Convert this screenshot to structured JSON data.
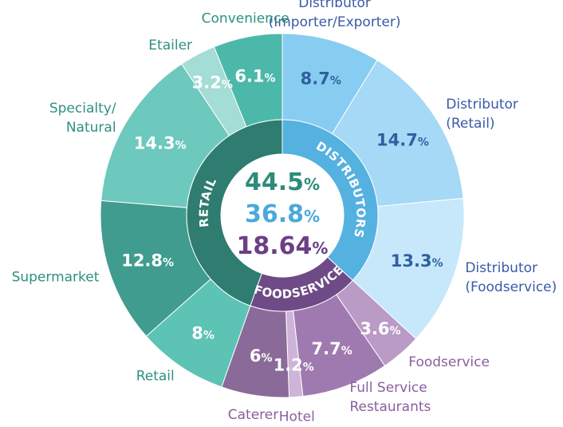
{
  "chart_data": {
    "type": "pie",
    "center_totals": [
      {
        "value": 44.5,
        "color": "#2e8b7a"
      },
      {
        "value": 36.8,
        "color": "#4aa9dc"
      },
      {
        "value": 18.64,
        "color": "#6b3f87"
      }
    ],
    "groups": [
      {
        "name": "DISTRIBUTORS",
        "value": 36.8,
        "color": "#55b1e0"
      },
      {
        "name": "FOODSERVICE",
        "value": 18.64,
        "color": "#6e4a86"
      },
      {
        "name": "RETAIL",
        "value": 44.5,
        "color": "#2f7c70"
      }
    ],
    "segments": [
      {
        "label": "Distributor (Importer/Exporter)",
        "label_lines": [
          "Distributor",
          "(Importer/Exporter)"
        ],
        "value": 8.7,
        "display": "8.7",
        "group": "DISTRIBUTORS",
        "color": "#87cdf1",
        "text_color": "#2f5f9f",
        "label_color": "#3a5aa8"
      },
      {
        "label": "Distributor (Retail)",
        "label_lines": [
          "Distributor",
          "(Retail)"
        ],
        "value": 14.7,
        "display": "14.7",
        "group": "DISTRIBUTORS",
        "color": "#a5d9f5",
        "text_color": "#2f5f9f",
        "label_color": "#3a5aa8"
      },
      {
        "label": "Distributor (Foodservice)",
        "label_lines": [
          "Distributor",
          "(Foodservice)"
        ],
        "value": 13.3,
        "display": "13.3",
        "group": "DISTRIBUTORS",
        "color": "#c6e8fa",
        "text_color": "#2f5f9f",
        "label_color": "#3a5aa8"
      },
      {
        "label": "Foodservice",
        "label_lines": [
          "Foodservice"
        ],
        "value": 3.6,
        "display": "3.6",
        "group": "FOODSERVICE",
        "color": "#b99bc6",
        "text_color": "#ffffff",
        "label_color": "#8a5e9e"
      },
      {
        "label": "Full Service Restaurants",
        "label_lines": [
          "Full Service",
          "Restaurants"
        ],
        "value": 7.7,
        "display": "7.7",
        "group": "FOODSERVICE",
        "color": "#9f7ab0",
        "text_color": "#ffffff",
        "label_color": "#8a5e9e"
      },
      {
        "label": "Hotel",
        "label_lines": [
          "Hotel"
        ],
        "value": 1.2,
        "display": "1.2",
        "group": "FOODSERVICE",
        "color": "#cdb4d8",
        "text_color": "#ffffff",
        "label_color": "#8a5e9e"
      },
      {
        "label": "Caterer",
        "label_lines": [
          "Caterer"
        ],
        "value": 6,
        "display": "6",
        "group": "FOODSERVICE",
        "color": "#8a6a98",
        "text_color": "#ffffff",
        "label_color": "#8a5e9e"
      },
      {
        "label": "Retail",
        "label_lines": [
          "Retail"
        ],
        "value": 8,
        "display": "8",
        "group": "RETAIL",
        "color": "#5cc3b5",
        "text_color": "#ffffff",
        "label_color": "#2e9080"
      },
      {
        "label": "Supermarket",
        "label_lines": [
          "Supermarket"
        ],
        "value": 12.8,
        "display": "12.8",
        "group": "RETAIL",
        "color": "#3f9c8e",
        "text_color": "#ffffff",
        "label_color": "#2e9080"
      },
      {
        "label": "Specialty/ Natural",
        "label_lines": [
          "Specialty/",
          "Natural"
        ],
        "value": 14.3,
        "display": "14.3",
        "group": "RETAIL",
        "color": "#6dc8bd",
        "text_color": "#ffffff",
        "label_color": "#2e9080"
      },
      {
        "label": "Etailer",
        "label_lines": [
          "Etailer"
        ],
        "value": 3.2,
        "display": "3.2",
        "group": "RETAIL",
        "color": "#a3ddd5",
        "text_color": "#ffffff",
        "label_color": "#2e9080"
      },
      {
        "label": "Convenience",
        "label_lines": [
          "Convenience"
        ],
        "value": 6.1,
        "display": "6.1",
        "group": "RETAIL",
        "color": "#4cb8aa",
        "text_color": "#ffffff",
        "label_color": "#2e9080"
      }
    ],
    "percent_sign": "%"
  }
}
